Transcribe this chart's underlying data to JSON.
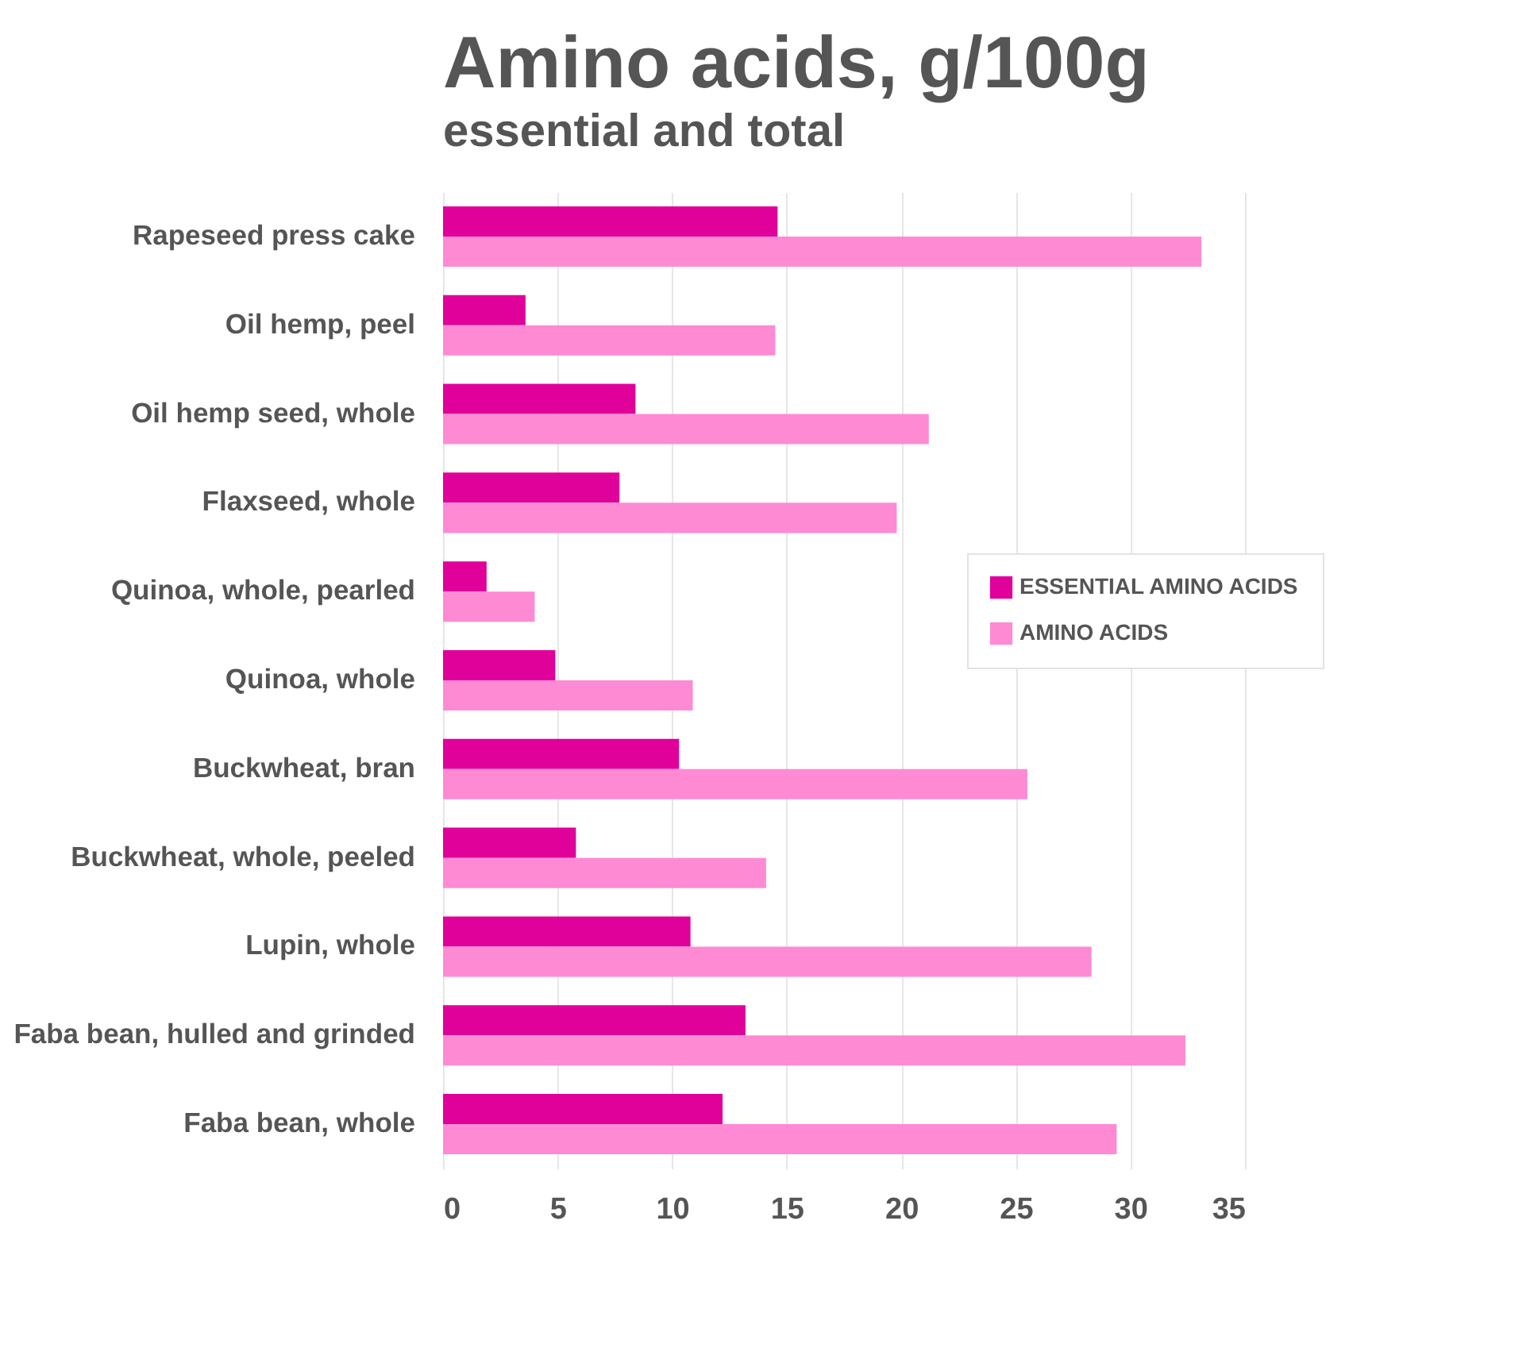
{
  "chart_data": {
    "type": "bar",
    "orientation": "horizontal",
    "title": "Amino acids, g/100g",
    "subtitle": "essential and total",
    "categories": [
      "Rapeseed press cake",
      "Oil hemp, peel",
      "Oil hemp seed, whole",
      "Flaxseed, whole",
      "Quinoa, whole, pearled",
      "Quinoa, whole",
      "Buckwheat, bran",
      "Buckwheat, whole, peeled",
      "Lupin, whole",
      "Faba bean, hulled and grinded",
      "Faba bean, whole"
    ],
    "series": [
      {
        "name": "ESSENTIAL AMINO ACIDS",
        "color": "#e0009a",
        "values": [
          14.6,
          3.6,
          8.4,
          7.7,
          1.9,
          4.9,
          10.3,
          5.8,
          10.8,
          13.2,
          12.2
        ]
      },
      {
        "name": "AMINO ACIDS",
        "color": "#ff8ad4",
        "values": [
          33.1,
          14.5,
          21.2,
          19.8,
          4.0,
          10.9,
          25.5,
          14.1,
          28.3,
          32.4,
          29.4
        ]
      }
    ],
    "xlim": [
      0,
      35
    ],
    "xticks": [
      0,
      5,
      10,
      15,
      20,
      25,
      30,
      35
    ],
    "grid": "x",
    "legend": "right"
  }
}
